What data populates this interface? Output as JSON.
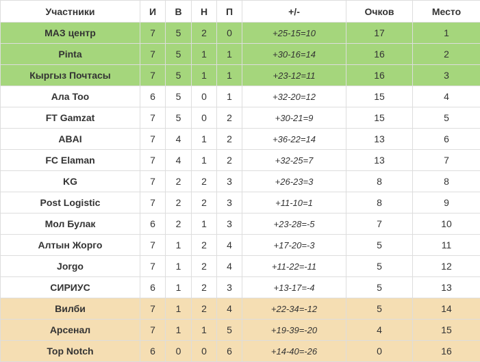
{
  "headers": {
    "team": "Участники",
    "games": "И",
    "wins": "В",
    "draws": "Н",
    "losses": "П",
    "diff": "+/-",
    "points": "Очков",
    "place": "Место"
  },
  "zone_colors": {
    "promotion": "#a5d67c",
    "relegation": "#f5deb3"
  },
  "rows": [
    {
      "team": "МАЗ центр",
      "games": "7",
      "wins": "5",
      "draws": "2",
      "losses": "0",
      "diff": "+25-15=10",
      "points": "17",
      "place": "1",
      "zone": "promo"
    },
    {
      "team": "Pinta",
      "games": "7",
      "wins": "5",
      "draws": "1",
      "losses": "1",
      "diff": "+30-16=14",
      "points": "16",
      "place": "2",
      "zone": "promo"
    },
    {
      "team": "Кыргыз Почтасы",
      "games": "7",
      "wins": "5",
      "draws": "1",
      "losses": "1",
      "diff": "+23-12=11",
      "points": "16",
      "place": "3",
      "zone": "promo"
    },
    {
      "team": "Ала Тоо",
      "games": "6",
      "wins": "5",
      "draws": "0",
      "losses": "1",
      "diff": "+32-20=12",
      "points": "15",
      "place": "4",
      "zone": ""
    },
    {
      "team": "FT Gamzat",
      "games": "7",
      "wins": "5",
      "draws": "0",
      "losses": "2",
      "diff": "+30-21=9",
      "points": "15",
      "place": "5",
      "zone": ""
    },
    {
      "team": "ABAI",
      "games": "7",
      "wins": "4",
      "draws": "1",
      "losses": "2",
      "diff": "+36-22=14",
      "points": "13",
      "place": "6",
      "zone": ""
    },
    {
      "team": "FC Elaman",
      "games": "7",
      "wins": "4",
      "draws": "1",
      "losses": "2",
      "diff": "+32-25=7",
      "points": "13",
      "place": "7",
      "zone": ""
    },
    {
      "team": "KG",
      "games": "7",
      "wins": "2",
      "draws": "2",
      "losses": "3",
      "diff": "+26-23=3",
      "points": "8",
      "place": "8",
      "zone": ""
    },
    {
      "team": "Post Logistic",
      "games": "7",
      "wins": "2",
      "draws": "2",
      "losses": "3",
      "diff": "+11-10=1",
      "points": "8",
      "place": "9",
      "zone": ""
    },
    {
      "team": "Мол Булак",
      "games": "6",
      "wins": "2",
      "draws": "1",
      "losses": "3",
      "diff": "+23-28=-5",
      "points": "7",
      "place": "10",
      "zone": ""
    },
    {
      "team": "Алтын Жорго",
      "games": "7",
      "wins": "1",
      "draws": "2",
      "losses": "4",
      "diff": "+17-20=-3",
      "points": "5",
      "place": "11",
      "zone": ""
    },
    {
      "team": "Jorgo",
      "games": "7",
      "wins": "1",
      "draws": "2",
      "losses": "4",
      "diff": "+11-22=-11",
      "points": "5",
      "place": "12",
      "zone": ""
    },
    {
      "team": "СИРИУС",
      "games": "6",
      "wins": "1",
      "draws": "2",
      "losses": "3",
      "diff": "+13-17=-4",
      "points": "5",
      "place": "13",
      "zone": ""
    },
    {
      "team": "Вилби",
      "games": "7",
      "wins": "1",
      "draws": "2",
      "losses": "4",
      "diff": "+22-34=-12",
      "points": "5",
      "place": "14",
      "zone": "releg"
    },
    {
      "team": "Арсенал",
      "games": "7",
      "wins": "1",
      "draws": "1",
      "losses": "5",
      "diff": "+19-39=-20",
      "points": "4",
      "place": "15",
      "zone": "releg"
    },
    {
      "team": "Top Notch",
      "games": "6",
      "wins": "0",
      "draws": "0",
      "losses": "6",
      "diff": "+14-40=-26",
      "points": "0",
      "place": "16",
      "zone": "releg"
    }
  ]
}
